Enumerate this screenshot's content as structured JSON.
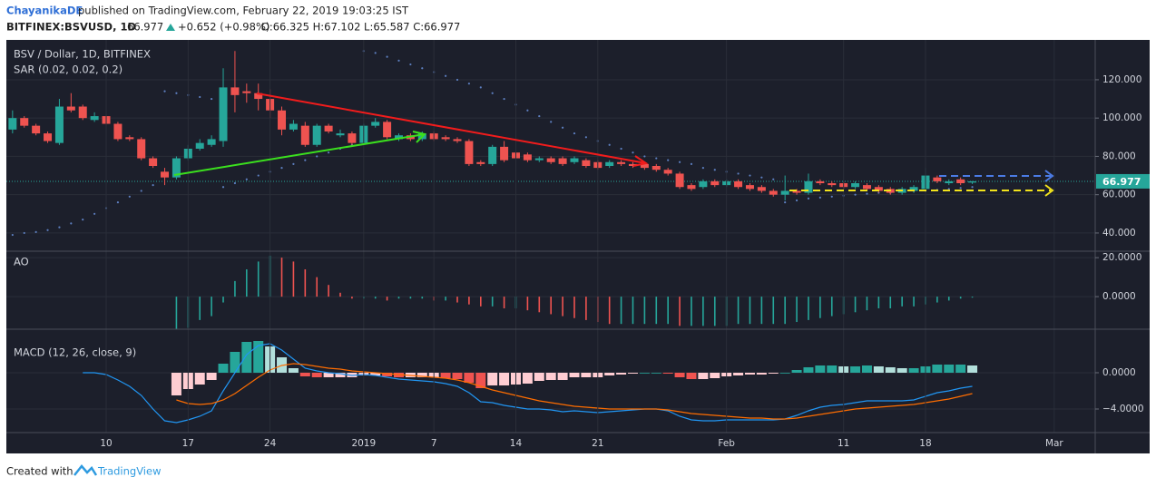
{
  "header": {
    "author": "ChayanikaDE",
    "published": "published on TradingView.com, February 22, 2019 19:03:25 IST",
    "symbol": "BITFINEX:BSVUSD, 1D",
    "last": "66.977",
    "change": "+0.652 (+0.98%)",
    "ohlc": "O:66.325 H:67.102 L:65.587 C:66.977"
  },
  "footer": {
    "created": "Created with",
    "brand": "TradingView"
  },
  "chart_data": [
    {
      "type": "candlestick",
      "title": "BSV / Dollar, 1D, BITFINEX",
      "up_color": "#26a69a",
      "down_color": "#ef5350",
      "grid": true,
      "xlim": [
        0.47,
        93.5
      ],
      "xticks": [
        {
          "value": 9,
          "label": "10"
        },
        {
          "value": 16,
          "label": "17"
        },
        {
          "value": 23,
          "label": "24"
        },
        {
          "value": 31,
          "label": "2019"
        },
        {
          "value": 37,
          "label": "7"
        },
        {
          "value": 44,
          "label": "14"
        },
        {
          "value": 51,
          "label": "21"
        },
        {
          "value": 62,
          "label": "Feb"
        },
        {
          "value": 72,
          "label": "11"
        },
        {
          "value": 79,
          "label": "18"
        },
        {
          "value": 90,
          "label": "Mar"
        }
      ],
      "ylim": [
        30.5,
        140.8
      ],
      "yticks": [
        {
          "value": 40,
          "label": "40.000"
        },
        {
          "value": 60,
          "label": "60.000"
        },
        {
          "value": 80,
          "label": "80.000"
        },
        {
          "value": 100,
          "label": "100.000"
        },
        {
          "value": 120,
          "label": "120.000"
        }
      ],
      "last_price": 66.977,
      "x": [
        1,
        2,
        3,
        4,
        5,
        6,
        7,
        8,
        9,
        10,
        11,
        12,
        13,
        14,
        15,
        16,
        17,
        18,
        19,
        20,
        21,
        22,
        23,
        24,
        25,
        26,
        27,
        28,
        29,
        30,
        31,
        32,
        33,
        34,
        35,
        36,
        37,
        38,
        39,
        40,
        41,
        42,
        43,
        44,
        45,
        46,
        47,
        48,
        49,
        50,
        51,
        52,
        53,
        54,
        55,
        56,
        57,
        58,
        59,
        60,
        61,
        62,
        63,
        64,
        65,
        66,
        67,
        68,
        69,
        70,
        71,
        72,
        73,
        74,
        75,
        76,
        77,
        78,
        79,
        80,
        81,
        82,
        83
      ],
      "open": [
        94,
        100,
        96,
        92,
        87,
        106,
        106,
        99,
        101,
        97,
        90,
        89,
        79,
        72,
        69,
        79,
        84,
        86,
        88,
        116,
        114,
        113,
        110,
        104,
        94,
        96,
        86,
        96,
        91,
        92,
        87,
        96,
        98,
        89,
        91,
        89,
        92,
        90,
        89,
        88,
        77,
        76,
        85,
        82,
        81,
        78,
        79,
        79,
        77,
        78,
        77,
        75,
        77,
        76,
        76,
        75,
        73,
        71,
        65,
        64,
        67,
        65,
        67,
        65,
        64,
        62,
        60,
        62,
        61,
        67,
        66,
        66,
        64,
        65,
        64,
        63,
        61,
        62,
        63,
        69,
        66,
        68,
        66.325
      ],
      "high": [
        104,
        101,
        97,
        93,
        110,
        113,
        107,
        103,
        102,
        98,
        91,
        90,
        80,
        74,
        80,
        86,
        89,
        91,
        126,
        135,
        118,
        118,
        115,
        106,
        99,
        98,
        97,
        97,
        94,
        93,
        97,
        100,
        99,
        92,
        92,
        93,
        93,
        91,
        90,
        89,
        78,
        86,
        88,
        83,
        82,
        80,
        80,
        80,
        80,
        79,
        78,
        78,
        78,
        77,
        77,
        76,
        74,
        72,
        66,
        68,
        68,
        68,
        68,
        66,
        65,
        63,
        70,
        63,
        71,
        68,
        67,
        67,
        67,
        66,
        65,
        64,
        64,
        65,
        74,
        70,
        68,
        69,
        67.102
      ],
      "low": [
        92,
        95,
        91,
        87,
        86,
        103,
        99,
        98,
        96,
        88,
        88,
        78,
        74,
        65,
        68,
        78,
        83,
        85,
        85,
        103,
        108,
        104,
        100,
        91,
        93,
        85,
        85,
        92,
        90,
        86,
        86,
        95,
        89,
        88,
        88,
        88,
        88,
        88,
        87,
        75,
        75,
        75,
        77,
        78,
        77,
        77,
        76,
        75,
        76,
        74,
        73,
        74,
        75,
        74,
        73,
        72,
        70,
        63,
        62,
        63,
        64,
        64,
        63,
        62,
        61,
        59,
        57,
        60,
        60,
        65,
        64,
        63,
        63,
        62,
        61,
        60,
        60,
        61,
        62,
        66,
        65,
        65,
        65.587
      ],
      "close": [
        100,
        96,
        92,
        88,
        106,
        104,
        100,
        101,
        97,
        89,
        89,
        79,
        75,
        69,
        79,
        84,
        87,
        89,
        116,
        112,
        113,
        110,
        104,
        94,
        97,
        86,
        96,
        93,
        92,
        87,
        96,
        98,
        90,
        91,
        89,
        92,
        89,
        89,
        88,
        76,
        76,
        85,
        78,
        79,
        78,
        79,
        77,
        76,
        79,
        75,
        74,
        77,
        76,
        75,
        74,
        73,
        71,
        64,
        63,
        67,
        65,
        67,
        64,
        63,
        62,
        60,
        62,
        61,
        67,
        66,
        65,
        64,
        66,
        63,
        62,
        61,
        63,
        64,
        70,
        67,
        67,
        66,
        66.977
      ],
      "series": [
        {
          "name": "SAR (0.02, 0.02, 0.2)",
          "color": "#5d7fc0",
          "values": [
            39,
            40,
            40.5,
            41.5,
            43,
            45,
            47,
            50,
            53,
            56,
            59,
            62,
            65,
            114,
            113,
            112,
            111,
            110,
            64,
            66,
            68,
            70,
            72,
            74,
            76,
            78,
            80,
            82,
            84,
            86,
            135,
            134,
            132,
            130,
            128,
            126,
            124,
            122,
            120,
            118,
            116,
            113,
            110,
            107,
            104,
            101,
            98,
            95,
            92,
            90,
            88,
            86,
            84,
            82,
            80,
            79,
            78,
            77,
            76,
            74,
            73,
            72,
            71,
            70,
            69,
            68,
            56,
            57,
            58,
            58.5,
            59,
            59.5,
            60,
            60.5,
            61,
            61,
            61.5,
            62,
            62,
            62.5,
            63,
            63.5,
            64
          ]
        }
      ]
    },
    {
      "type": "histogram",
      "title": "AO",
      "grid": true,
      "colors": [
        "#26a69a",
        "#ef5350"
      ],
      "ylim": [
        -16.7,
        23.3
      ],
      "yticks": [
        {
          "value": 0,
          "label": "0.0000"
        },
        {
          "value": 20,
          "label": "20.0000"
        }
      ],
      "values": [
        null,
        null,
        null,
        null,
        null,
        null,
        null,
        null,
        null,
        null,
        null,
        null,
        null,
        null,
        -18,
        -16,
        -12,
        -10,
        -3,
        8,
        14,
        18,
        21,
        20,
        18,
        14,
        10,
        6,
        2,
        -1,
        -1,
        -1,
        -2,
        -1,
        -1,
        -1,
        -2,
        -2,
        -3,
        -4,
        -5,
        -5,
        -6,
        -6,
        -7,
        -8,
        -9,
        -10,
        -11,
        -12,
        -13,
        -14,
        -14,
        -14,
        -14,
        -14,
        -14,
        -15,
        -15,
        -15,
        -15,
        -15,
        -14,
        -14,
        -14,
        -14,
        -14,
        -13,
        -12,
        -11,
        -10,
        -9,
        -8,
        -7,
        -6,
        -6,
        -5,
        -5,
        -4,
        -3,
        -2,
        -1,
        -0.5
      ]
    },
    {
      "type": "macd",
      "title": "MACD (12, 26, close, 9)",
      "grid": true,
      "hist_colors": [
        "#26a69a",
        "#b2dfdb",
        "#ef5350",
        "#ffcdd2"
      ],
      "ylim": [
        -6.6,
        4.8
      ],
      "yticks": [
        {
          "value": -4,
          "label": "−4.0000"
        },
        {
          "value": 0,
          "label": "0.0000"
        }
      ],
      "histogram": [
        null,
        null,
        null,
        null,
        null,
        null,
        null,
        null,
        null,
        null,
        null,
        null,
        null,
        null,
        -2.5,
        -1.8,
        -1.3,
        -0.8,
        1,
        2.3,
        3.4,
        3.5,
        2.9,
        1.7,
        0.5,
        -0.4,
        -0.5,
        -0.5,
        -0.5,
        -0.5,
        -0.3,
        -0.3,
        -0.4,
        -0.5,
        -0.5,
        -0.5,
        -0.5,
        -0.6,
        -0.7,
        -1.1,
        -1.7,
        -1.4,
        -1.4,
        -1.3,
        -1.2,
        -0.9,
        -0.8,
        -0.8,
        -0.5,
        -0.5,
        -0.5,
        -0.3,
        -0.2,
        -0.1,
        0,
        0,
        -0.1,
        -0.5,
        -0.7,
        -0.7,
        -0.6,
        -0.4,
        -0.3,
        -0.2,
        -0.2,
        -0.1,
        0,
        0.3,
        0.6,
        0.8,
        0.8,
        0.7,
        0.7,
        0.8,
        0.7,
        0.6,
        0.5,
        0.5,
        0.7,
        0.9,
        0.9,
        0.9,
        0.8
      ],
      "series": [
        {
          "color": "#2196f3",
          "values": [
            null,
            null,
            null,
            null,
            null,
            null,
            0,
            0,
            -0.2,
            -0.8,
            -1.5,
            -2.5,
            -4,
            -5.3,
            -5.5,
            -5.2,
            -4.8,
            -4.2,
            -2,
            0,
            2,
            3,
            3.2,
            2.5,
            1.5,
            0.5,
            0.2,
            0,
            -0.1,
            -0.3,
            -0.2,
            -0.3,
            -0.5,
            -0.7,
            -0.8,
            -0.9,
            -1,
            -1.2,
            -1.5,
            -2.2,
            -3.2,
            -3.3,
            -3.6,
            -3.8,
            -4,
            -4,
            -4.1,
            -4.3,
            -4.2,
            -4.3,
            -4.4,
            -4.3,
            -4.2,
            -4.1,
            -4,
            -4,
            -4.2,
            -4.8,
            -5.2,
            -5.3,
            -5.3,
            -5.2,
            -5.2,
            -5.2,
            -5.2,
            -5.2,
            -5.1,
            -4.7,
            -4.2,
            -3.8,
            -3.6,
            -3.5,
            -3.3,
            -3.1,
            -3.1,
            -3.1,
            -3.1,
            -3,
            -2.6,
            -2.2,
            -2,
            -1.7,
            -1.5
          ]
        },
        {
          "color": "#ff6d00",
          "values": [
            null,
            null,
            null,
            null,
            null,
            null,
            null,
            null,
            null,
            null,
            null,
            null,
            null,
            null,
            -3,
            -3.4,
            -3.5,
            -3.4,
            -3,
            -2.3,
            -1.4,
            -0.5,
            0.3,
            0.8,
            1,
            0.9,
            0.7,
            0.5,
            0.4,
            0.2,
            0.1,
            0,
            -0.1,
            -0.2,
            -0.3,
            -0.4,
            -0.5,
            -0.6,
            -0.8,
            -1.1,
            -1.5,
            -1.9,
            -2.2,
            -2.5,
            -2.8,
            -3.1,
            -3.3,
            -3.5,
            -3.7,
            -3.8,
            -3.9,
            -4,
            -4,
            -4,
            -4,
            -4,
            -4.1,
            -4.3,
            -4.5,
            -4.6,
            -4.7,
            -4.8,
            -4.9,
            -5,
            -5,
            -5.1,
            -5.1,
            -5,
            -4.8,
            -4.6,
            -4.4,
            -4.2,
            -4,
            -3.9,
            -3.8,
            -3.7,
            -3.6,
            -3.5,
            -3.3,
            -3.1,
            -2.9,
            -2.6,
            -2.3
          ]
        }
      ]
    }
  ]
}
